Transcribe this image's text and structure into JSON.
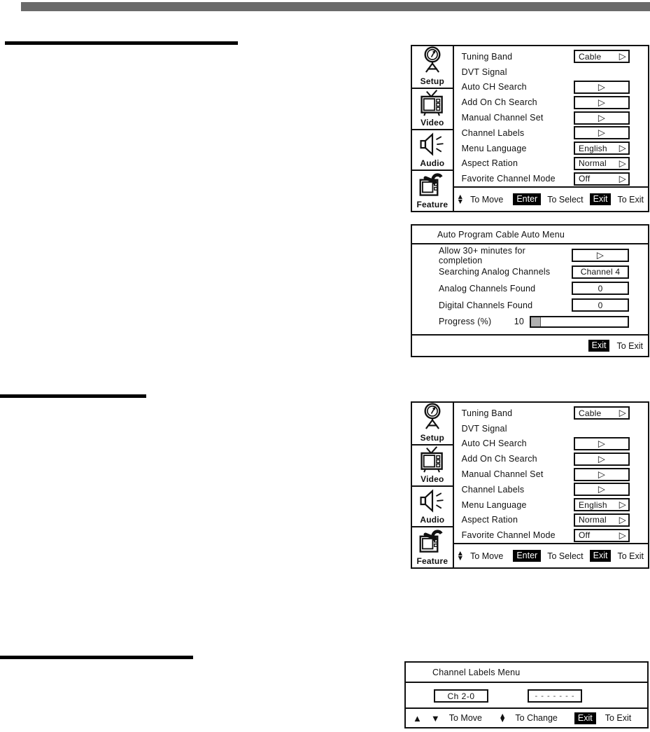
{
  "page": {
    "colors": {
      "header_bar": "#6a6a6a",
      "progress_fill": "#b0b0b0",
      "badge_bg": "#000000",
      "badge_text": "#ffffff"
    }
  },
  "setup_menu": {
    "sidebar": [
      {
        "label": "Setup",
        "icon": "signal-meter-icon"
      },
      {
        "label": "Video",
        "icon": "tv-icon"
      },
      {
        "label": "Audio",
        "icon": "speaker-icon"
      },
      {
        "label": "Feature",
        "icon": "tv-wrench-icon"
      }
    ],
    "items": [
      {
        "label": "Tuning Band",
        "value": "Cable",
        "control": "dropdown"
      },
      {
        "label": "DVT Signal",
        "control": "none"
      },
      {
        "label": "Auto CH Search",
        "control": "action"
      },
      {
        "label": "Add On Ch Search",
        "control": "action"
      },
      {
        "label": "Manual Channel Set",
        "control": "action"
      },
      {
        "label": "Channel Labels",
        "control": "action"
      },
      {
        "label": "Menu Language",
        "value": "English",
        "control": "dropdown"
      },
      {
        "label": "Aspect Ration",
        "value": "Normal",
        "control": "dropdown"
      },
      {
        "label": "Favorite Channel Mode",
        "value": "Off",
        "control": "dropdown"
      }
    ],
    "footer": {
      "move_label": "To Move",
      "enter_key": "Enter",
      "select_label": "To Select",
      "exit_key": "Exit",
      "exit_label": "To Exit"
    }
  },
  "auto_program_menu": {
    "title": "Auto Program Cable Auto Menu",
    "rows": [
      {
        "label": "Allow 30+ minutes for completion",
        "control": "action"
      },
      {
        "label": "Searching Analog Channels",
        "value": "Channel 4"
      },
      {
        "label": "Analog Channels Found",
        "value": "0"
      },
      {
        "label": "Digital Channels Found",
        "value": "0"
      }
    ],
    "progress": {
      "label": "Progress (%)",
      "value": "10",
      "percent": 10
    },
    "footer": {
      "exit_key": "Exit",
      "exit_label": "To Exit"
    }
  },
  "channel_labels_menu": {
    "title": "Channel Labels Menu",
    "channel_value": "Ch 2-0",
    "label_value": "- - - - - - -",
    "footer": {
      "move_label": "To Move",
      "change_label": "To Change",
      "exit_key": "Exit",
      "exit_label": "To Exit"
    }
  }
}
